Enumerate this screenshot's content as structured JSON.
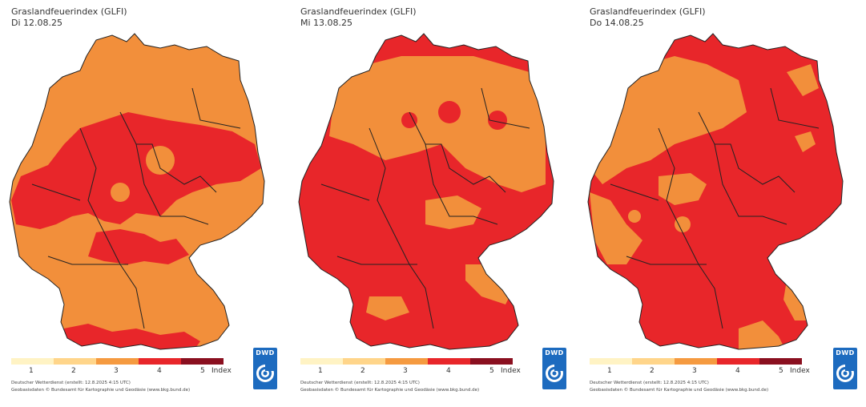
{
  "panels": [
    {
      "title": "Graslandfeuerindex (GLFI)",
      "date": "Di 12.08.25",
      "dominant_level": 3
    },
    {
      "title": "Graslandfeuerindex (GLFI)",
      "date": "Mi 13.08.25",
      "dominant_level": 4
    },
    {
      "title": "Graslandfeuerindex (GLFI)",
      "date": "Do 14.08.25",
      "dominant_level": 4
    }
  ],
  "legend": {
    "labels": [
      "1",
      "2",
      "3",
      "4",
      "5"
    ],
    "unit": "Index",
    "colors": [
      "#fff3c4",
      "#ffd58a",
      "#f59a40",
      "#e8262a",
      "#8a0f1f"
    ]
  },
  "footer": {
    "line1": "Deutscher Wetterdienst (erstellt: 12.8.2025 4:15 UTC)",
    "line2": "Geobasisdaten © Bundesamt für Kartographie und Geodäsie (www.bkg.bund.de)"
  },
  "logo": {
    "text": "DWD",
    "icon": "dwd-swirl-icon"
  },
  "colors": {
    "orange": "#f28f3b",
    "red": "#e8262a",
    "border": "#222222"
  }
}
